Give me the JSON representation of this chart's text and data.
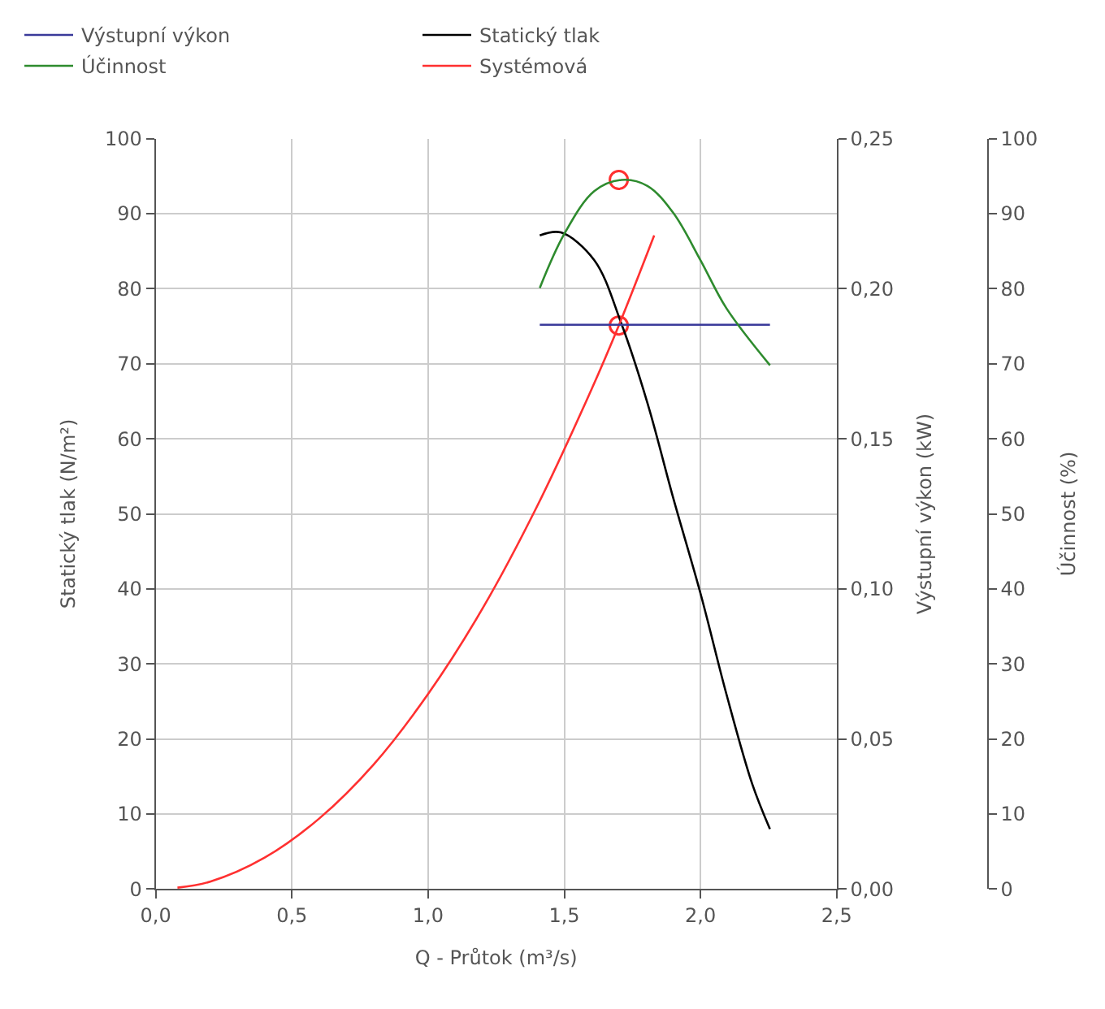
{
  "chart_data": {
    "type": "line",
    "xlabel": "Q - Průtok (m³/s)",
    "ylabel": "Statický tlak (N/m²)",
    "y2label": "Výstupní výkon (kW)",
    "y3label": "Účinnost (%)",
    "xlim": [
      0,
      2.5
    ],
    "xticks": [
      {
        "value": 0,
        "label": "0,0"
      },
      {
        "value": 0.5,
        "label": "0,5"
      },
      {
        "value": 1,
        "label": "1,0"
      },
      {
        "value": 1.5,
        "label": "1,5"
      },
      {
        "value": 2,
        "label": "2,0"
      },
      {
        "value": 2.5,
        "label": "2,5"
      }
    ],
    "ylim": [
      0,
      100
    ],
    "yticks": [
      0,
      10,
      20,
      30,
      40,
      50,
      60,
      70,
      80,
      90,
      100
    ],
    "y2lim": [
      0,
      0.25
    ],
    "y2ticks": [
      {
        "value": 0,
        "label": "0,00"
      },
      {
        "value": 0.05,
        "label": "0,05"
      },
      {
        "value": 0.1,
        "label": "0,10"
      },
      {
        "value": 0.15,
        "label": "0,15"
      },
      {
        "value": 0.2,
        "label": "0,20"
      },
      {
        "value": 0.25,
        "label": "0,25"
      }
    ],
    "y3lim": [
      0,
      100
    ],
    "y3ticks": [
      0,
      10,
      20,
      30,
      40,
      50,
      60,
      70,
      80,
      90,
      100
    ],
    "grid": true,
    "legend": "top",
    "series": [
      {
        "name": "Výstupní výkon",
        "color": "#3a3a9a",
        "axis": "y2",
        "x": [
          1.41,
          2.255
        ],
        "values": [
          0.188,
          0.188
        ]
      },
      {
        "name": "Statický tlak",
        "color": "#000000",
        "axis": "y",
        "x": [
          1.41,
          1.487,
          1.61,
          1.71,
          1.805,
          1.9,
          2.0,
          2.095,
          2.19,
          2.255
        ],
        "values": [
          87.1,
          87.5,
          83.8,
          75.3,
          64.8,
          52.1,
          39.4,
          26,
          14,
          8
        ]
      },
      {
        "name": "Účinnost",
        "color": "#2e8b2e",
        "axis": "y3",
        "x": [
          1.41,
          1.5,
          1.61,
          1.71,
          1.805,
          1.9,
          2.0,
          2.095,
          2.255
        ],
        "values": [
          80.1,
          87.3,
          93.0,
          94.5,
          93.7,
          90.1,
          83.8,
          77.4,
          69.8
        ]
      },
      {
        "name": "Systémová",
        "color": "#ff3030",
        "axis": "y",
        "x": [
          0.08,
          0.2,
          0.4,
          0.6,
          0.8,
          1.0,
          1.2,
          1.4,
          1.6,
          1.7,
          1.83
        ],
        "values": [
          0.2,
          1.0,
          4.2,
          9.4,
          16.6,
          26.0,
          37.4,
          51.0,
          66.6,
          75.1,
          87.1
        ]
      },
      {
        "type": "scatter",
        "marker": "circle",
        "color": "#ff3030",
        "axis": "y",
        "x": [
          1.7
        ],
        "values": [
          75.1
        ]
      },
      {
        "type": "scatter",
        "marker": "circle",
        "color": "#ff3030",
        "axis": "y3",
        "x": [
          1.7
        ],
        "values": [
          94.5
        ]
      }
    ]
  }
}
